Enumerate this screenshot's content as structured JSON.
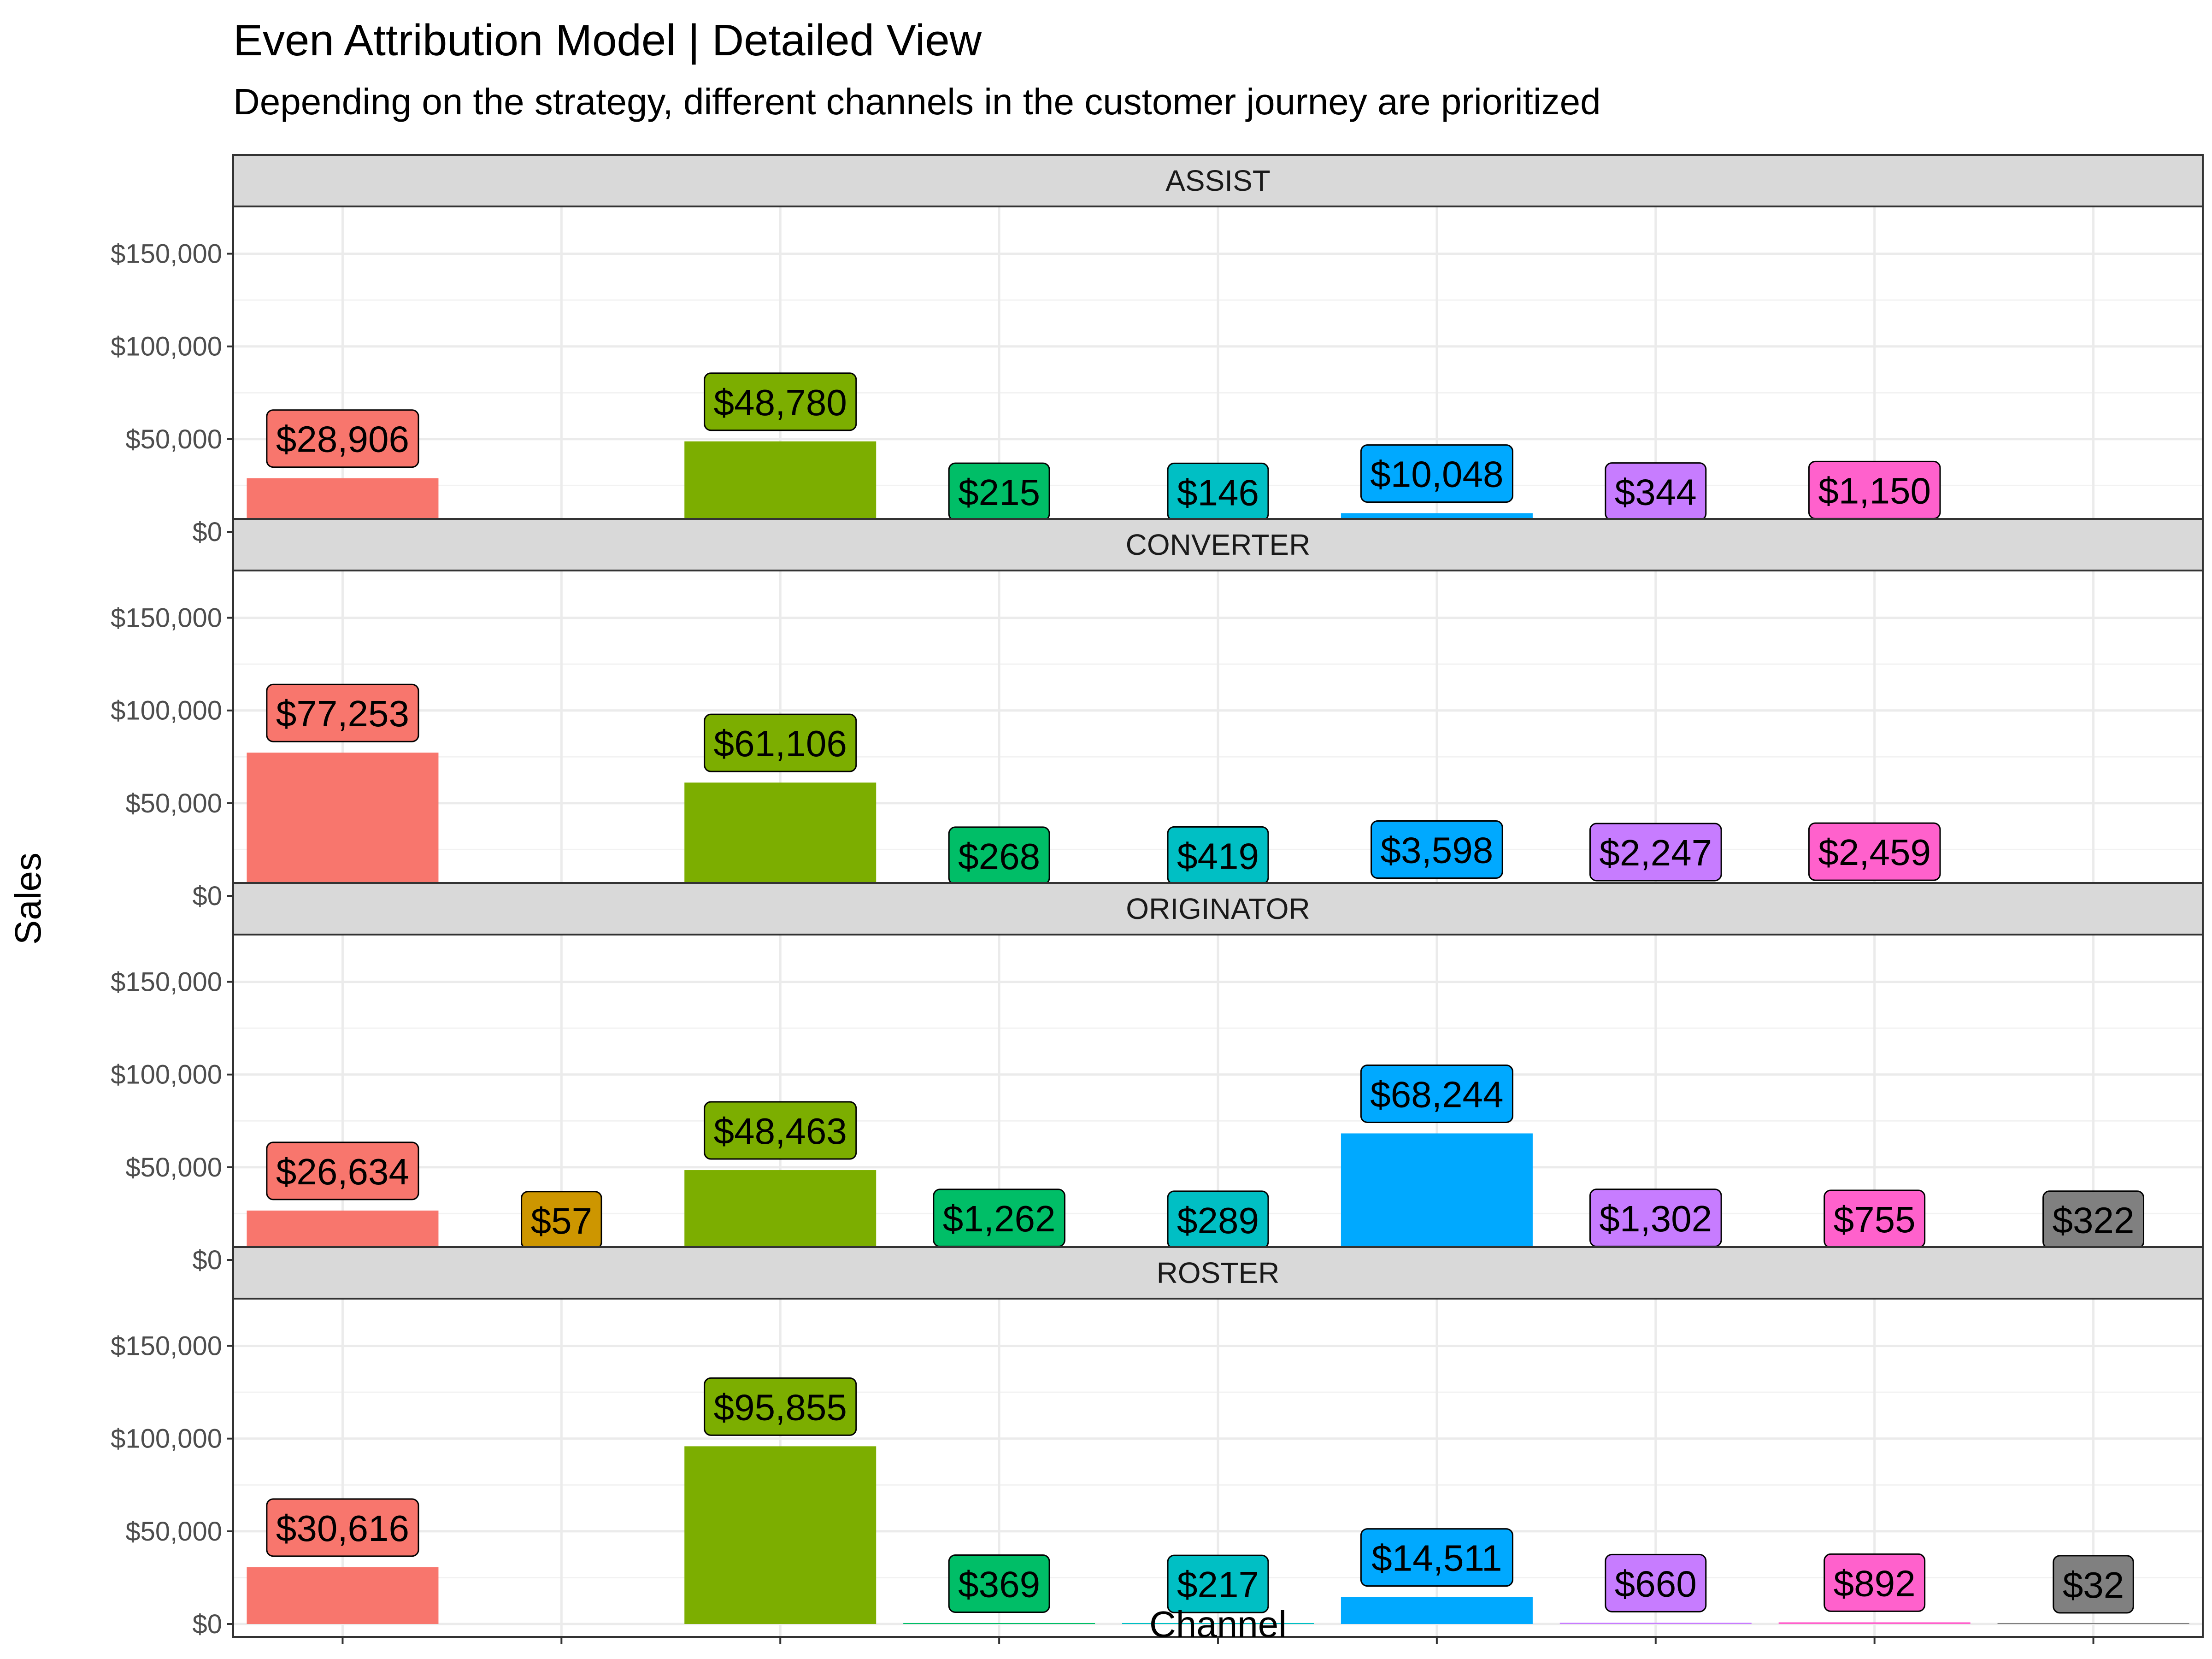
{
  "chart_data": {
    "type": "bar",
    "title": "Even Attribution Model | Detailed View",
    "subtitle": "Depending on the strategy, different channels in the customer journey are prioritized",
    "xlabel": "Channel",
    "ylabel": "Sales",
    "ylim": [
      0,
      175000
    ],
    "y_ticks": [
      0,
      50000,
      100000,
      150000
    ],
    "y_tick_labels": [
      "$0",
      "$50,000",
      "$100,000",
      "$150,000"
    ],
    "grid": true,
    "legend": "none",
    "facet_by": "strategy",
    "slot_colors": [
      "#F8766D",
      "#CD9600",
      "#7CAE00",
      "#00BE67",
      "#00BFC4",
      "#00A9FF",
      "#C77CFF",
      "#FF61CC",
      "#808080"
    ],
    "facets": [
      {
        "name": "ASSIST",
        "points": [
          {
            "slot": 0,
            "value": 28906,
            "label": "$28,906"
          },
          {
            "slot": 2,
            "value": 48780,
            "label": "$48,780"
          },
          {
            "slot": 3,
            "value": 215,
            "label": "$215"
          },
          {
            "slot": 4,
            "value": 146,
            "label": "$146"
          },
          {
            "slot": 5,
            "value": 10048,
            "label": "$10,048"
          },
          {
            "slot": 6,
            "value": 344,
            "label": "$344"
          },
          {
            "slot": 7,
            "value": 1150,
            "label": "$1,150"
          }
        ]
      },
      {
        "name": "CONVERTER",
        "points": [
          {
            "slot": 0,
            "value": 77253,
            "label": "$77,253"
          },
          {
            "slot": 2,
            "value": 61106,
            "label": "$61,106"
          },
          {
            "slot": 3,
            "value": 268,
            "label": "$268"
          },
          {
            "slot": 4,
            "value": 419,
            "label": "$419"
          },
          {
            "slot": 5,
            "value": 3598,
            "label": "$3,598"
          },
          {
            "slot": 6,
            "value": 2247,
            "label": "$2,247"
          },
          {
            "slot": 7,
            "value": 2459,
            "label": "$2,459"
          }
        ]
      },
      {
        "name": "ORIGINATOR",
        "points": [
          {
            "slot": 0,
            "value": 26634,
            "label": "$26,634"
          },
          {
            "slot": 1,
            "value": 57,
            "label": "$57"
          },
          {
            "slot": 2,
            "value": 48463,
            "label": "$48,463"
          },
          {
            "slot": 3,
            "value": 1262,
            "label": "$1,262"
          },
          {
            "slot": 4,
            "value": 289,
            "label": "$289"
          },
          {
            "slot": 5,
            "value": 68244,
            "label": "$68,244"
          },
          {
            "slot": 6,
            "value": 1302,
            "label": "$1,302"
          },
          {
            "slot": 7,
            "value": 755,
            "label": "$755"
          },
          {
            "slot": 8,
            "value": 322,
            "label": "$322"
          }
        ]
      },
      {
        "name": "ROSTER",
        "points": [
          {
            "slot": 0,
            "value": 30616,
            "label": "$30,616"
          },
          {
            "slot": 2,
            "value": 95855,
            "label": "$95,855"
          },
          {
            "slot": 3,
            "value": 369,
            "label": "$369"
          },
          {
            "slot": 4,
            "value": 217,
            "label": "$217"
          },
          {
            "slot": 5,
            "value": 14511,
            "label": "$14,511"
          },
          {
            "slot": 6,
            "value": 660,
            "label": "$660"
          },
          {
            "slot": 7,
            "value": 892,
            "label": "$892"
          },
          {
            "slot": 8,
            "value": 32,
            "label": "$32"
          }
        ]
      }
    ]
  }
}
